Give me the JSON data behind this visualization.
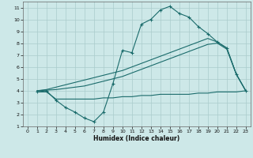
{
  "xlabel": "Humidex (Indice chaleur)",
  "xlim": [
    -0.5,
    23.5
  ],
  "ylim": [
    1,
    11.5
  ],
  "yticks": [
    1,
    2,
    3,
    4,
    5,
    6,
    7,
    8,
    9,
    10,
    11
  ],
  "xticks": [
    0,
    1,
    2,
    3,
    4,
    5,
    6,
    7,
    8,
    9,
    10,
    11,
    12,
    13,
    14,
    15,
    16,
    17,
    18,
    19,
    20,
    21,
    22,
    23
  ],
  "bg_color": "#cde8e8",
  "grid_color": "#aacccc",
  "line_color": "#1a6b6b",
  "line1_x": [
    1,
    2,
    3,
    4,
    5,
    6,
    7,
    8,
    9,
    10,
    11,
    12,
    13,
    14,
    15,
    16,
    17,
    18,
    19,
    20,
    21,
    22,
    23
  ],
  "line1_y": [
    3.9,
    4.0,
    3.2,
    2.6,
    2.2,
    1.7,
    1.4,
    2.2,
    4.6,
    7.4,
    7.2,
    9.6,
    10.0,
    10.8,
    11.1,
    10.5,
    10.2,
    9.4,
    8.8,
    8.1,
    7.6,
    5.4,
    4.0
  ],
  "line2_x": [
    1,
    2,
    3,
    4,
    5,
    6,
    7,
    8,
    9,
    10,
    11,
    12,
    13,
    14,
    15,
    16,
    17,
    18,
    19,
    20,
    21,
    22,
    23
  ],
  "line2_y": [
    4.0,
    4.1,
    4.3,
    4.5,
    4.7,
    4.9,
    5.1,
    5.3,
    5.5,
    5.7,
    6.0,
    6.3,
    6.6,
    6.9,
    7.2,
    7.5,
    7.8,
    8.1,
    8.4,
    8.1,
    7.6,
    5.4,
    4.0
  ],
  "line3_x": [
    1,
    2,
    3,
    4,
    5,
    6,
    7,
    8,
    9,
    10,
    11,
    12,
    13,
    14,
    15,
    16,
    17,
    18,
    19,
    20,
    21,
    22,
    23
  ],
  "line3_y": [
    4.0,
    4.05,
    4.1,
    4.2,
    4.3,
    4.4,
    4.6,
    4.8,
    5.0,
    5.2,
    5.5,
    5.8,
    6.1,
    6.4,
    6.7,
    7.0,
    7.3,
    7.6,
    7.9,
    8.0,
    7.5,
    5.4,
    4.0
  ],
  "line4_x": [
    1,
    2,
    3,
    4,
    5,
    6,
    7,
    8,
    9,
    10,
    11,
    12,
    13,
    14,
    15,
    16,
    17,
    18,
    19,
    20,
    21,
    22,
    23
  ],
  "line4_y": [
    3.9,
    3.9,
    3.3,
    3.3,
    3.3,
    3.3,
    3.3,
    3.4,
    3.4,
    3.5,
    3.5,
    3.6,
    3.6,
    3.7,
    3.7,
    3.7,
    3.7,
    3.8,
    3.8,
    3.9,
    3.9,
    3.9,
    4.0
  ]
}
